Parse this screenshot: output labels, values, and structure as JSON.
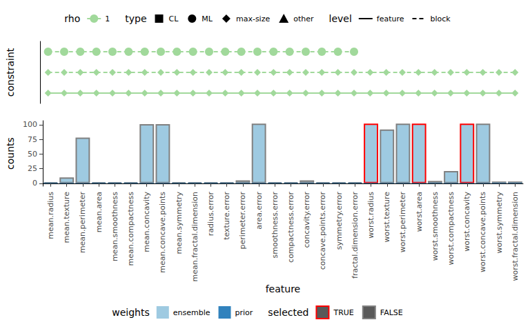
{
  "chart_data": {
    "type": "bar",
    "x_label": "feature",
    "y_label": "counts",
    "constraint_label": "constraint",
    "categories": [
      "mean.radius",
      "mean.texture",
      "mean.perimeter",
      "mean.area",
      "mean.smoothness",
      "mean.compactness",
      "mean.concavity",
      "mean.concave.points",
      "mean.symmetry",
      "mean.fractal.dimension",
      "radius.error",
      "texture.error",
      "perimeter.error",
      "area.error",
      "smoothness.error",
      "compactness.error",
      "concavity.error",
      "concave.points.error",
      "symmetry.error",
      "fractal.dimension.error",
      "worst.radius",
      "worst.texture",
      "worst.perimeter",
      "worst.area",
      "worst.smoothness",
      "worst.compactness",
      "worst.concavity",
      "worst.concave.points",
      "worst.symmetry",
      "worst.fractal.dimension"
    ],
    "series": [
      {
        "name": "ensemble",
        "color": "#9ecae1",
        "values": [
          2,
          10,
          78,
          2,
          2,
          2,
          101,
          101,
          2,
          2,
          2,
          2,
          5,
          102,
          2,
          2,
          5,
          2,
          2,
          2,
          102,
          92,
          102,
          102,
          4,
          21,
          102,
          102,
          3,
          3
        ]
      },
      {
        "name": "prior",
        "color": "#3182bd",
        "values": [
          1,
          1,
          1,
          1,
          1,
          1,
          1,
          1,
          1,
          1,
          1,
          1,
          1,
          1,
          1,
          1,
          1,
          1,
          1,
          1,
          1,
          1,
          1,
          1,
          1,
          1,
          1,
          1,
          1,
          1
        ]
      }
    ],
    "weights_title": "weights",
    "selected": {
      "title": "selected",
      "labels": [
        "TRUE",
        "FALSE"
      ],
      "colors": [
        "#ff0000",
        "#808080"
      ],
      "values": [
        "FALSE",
        "FALSE",
        "FALSE",
        "FALSE",
        "FALSE",
        "FALSE",
        "FALSE",
        "FALSE",
        "FALSE",
        "FALSE",
        "FALSE",
        "FALSE",
        "FALSE",
        "FALSE",
        "FALSE",
        "FALSE",
        "FALSE",
        "FALSE",
        "FALSE",
        "FALSE",
        "TRUE",
        "FALSE",
        "FALSE",
        "TRUE",
        "FALSE",
        "FALSE",
        "TRUE",
        "FALSE",
        "FALSE",
        "FALSE"
      ]
    },
    "ylim": [
      -5,
      107
    ],
    "yticks": [
      0,
      25,
      50,
      75,
      100
    ],
    "grid": false,
    "constraints": {
      "rho": {
        "title": "rho",
        "levels": [
          1
        ],
        "color": "#a1d99b"
      },
      "types": {
        "title": "type",
        "labels": [
          "CL",
          "ML",
          "max-size",
          "other"
        ],
        "markers": [
          "square",
          "circle",
          "diamond",
          "triangle"
        ]
      },
      "levels": {
        "title": "level",
        "labels": [
          "feature",
          "block"
        ],
        "line_styles": [
          "solid",
          "dashed"
        ]
      },
      "rows": [
        {
          "type": "ML",
          "level": "block",
          "rho": 1,
          "features": [
            "mean.radius",
            "mean.texture",
            "mean.perimeter",
            "mean.area",
            "mean.smoothness",
            "mean.compactness",
            "mean.concavity",
            "mean.concave.points",
            "mean.symmetry",
            "mean.fractal.dimension",
            "radius.error",
            "texture.error",
            "perimeter.error",
            "area.error",
            "smoothness.error",
            "compactness.error",
            "concavity.error",
            "concave.points.error",
            "symmetry.error",
            "fractal.dimension.error"
          ]
        },
        {
          "type": "max-size",
          "level": "block",
          "rho": 1,
          "features": [
            "mean.radius",
            "mean.texture",
            "mean.perimeter",
            "mean.area",
            "mean.smoothness",
            "mean.compactness",
            "mean.concavity",
            "mean.concave.points",
            "mean.symmetry",
            "mean.fractal.dimension",
            "radius.error",
            "texture.error",
            "perimeter.error",
            "area.error",
            "smoothness.error",
            "compactness.error",
            "concavity.error",
            "concave.points.error",
            "symmetry.error",
            "fractal.dimension.error",
            "worst.radius",
            "worst.texture",
            "worst.perimeter",
            "worst.area",
            "worst.smoothness",
            "worst.compactness",
            "worst.concavity",
            "worst.concave.points",
            "worst.symmetry",
            "worst.fractal.dimension"
          ]
        },
        {
          "type": "max-size",
          "level": "feature",
          "rho": 1,
          "features": [
            "mean.radius",
            "mean.texture",
            "mean.perimeter",
            "mean.area",
            "mean.smoothness",
            "mean.compactness",
            "mean.concavity",
            "mean.concave.points",
            "mean.symmetry",
            "mean.fractal.dimension",
            "radius.error",
            "texture.error",
            "perimeter.error",
            "area.error",
            "smoothness.error",
            "compactness.error",
            "concavity.error",
            "concave.points.error",
            "symmetry.error",
            "fractal.dimension.error",
            "worst.radius",
            "worst.texture",
            "worst.perimeter",
            "worst.area",
            "worst.smoothness",
            "worst.compactness",
            "worst.concavity",
            "worst.concave.points",
            "worst.symmetry",
            "worst.fractal.dimension"
          ]
        }
      ]
    }
  }
}
